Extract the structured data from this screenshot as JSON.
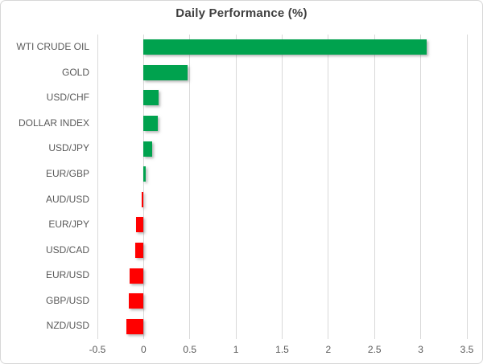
{
  "title": "Daily Performance (%)",
  "colors": {
    "positive": "#00A24E",
    "negative": "#FF0000",
    "gridline": "#D9D9D9",
    "title_text": "#3F3F3F",
    "label_text": "#595959"
  },
  "chart_data": {
    "type": "bar",
    "orientation": "horizontal",
    "title": "Daily Performance (%)",
    "xlabel": "",
    "ylabel": "",
    "categories": [
      "WTI CRUDE OIL",
      "GOLD",
      "USD/CHF",
      "DOLLAR INDEX",
      "USD/JPY",
      "EUR/GBP",
      "AUD/USD",
      "EUR/JPY",
      "USD/CAD",
      "EUR/USD",
      "GBP/USD",
      "NZD/USD"
    ],
    "values": [
      3.06,
      0.48,
      0.16,
      0.15,
      0.09,
      0.02,
      -0.02,
      -0.08,
      -0.09,
      -0.15,
      -0.16,
      -0.19
    ],
    "xlim": [
      -0.5,
      3.5
    ],
    "xticks": [
      -0.5,
      0,
      0.5,
      1,
      1.5,
      2,
      2.5,
      3,
      3.5
    ],
    "xtick_labels": [
      "-0.5",
      "0",
      "0.5",
      "1",
      "1.5",
      "2",
      "2.5",
      "3",
      "3.5"
    ],
    "grid": true,
    "legend": "none"
  }
}
